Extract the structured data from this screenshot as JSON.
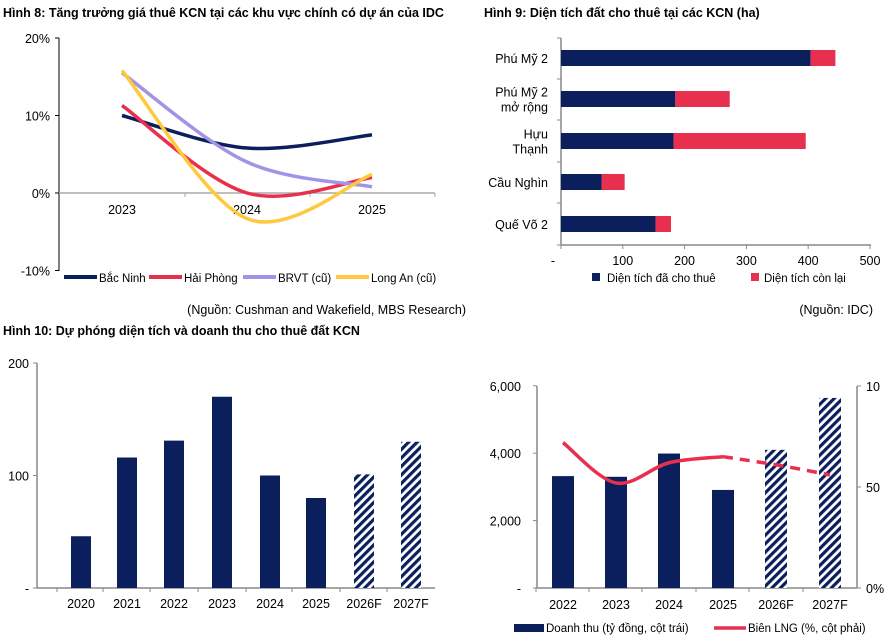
{
  "chart_data": [
    {
      "type": "line",
      "title": "Hình 8: Tăng trưởng giá thuê KCN tại các khu vực chính có dự án của IDC",
      "source": "(Nguồn: Cushman and Wakefield, MBS Research)",
      "categories": [
        "2023",
        "2024",
        "2025"
      ],
      "ylim": [
        -10,
        20
      ],
      "yticks": [
        "20%",
        "10%",
        "0%",
        "-10%"
      ],
      "legend": "bottom",
      "series": [
        {
          "name": "Bắc Ninh",
          "color": "#0b1f5c",
          "values": [
            10,
            5.8,
            7.5
          ]
        },
        {
          "name": "Hải Phòng",
          "color": "#e8304e",
          "values": [
            11.3,
            0,
            2
          ]
        },
        {
          "name": "BRVT (cũ)",
          "color": "#a393e6",
          "values": [
            15.5,
            4,
            0.8
          ]
        },
        {
          "name": "Long An (cũ)",
          "color": "#ffc83d",
          "values": [
            15.8,
            -3.3,
            2.4
          ]
        }
      ]
    },
    {
      "type": "bar",
      "orientation": "horizontal",
      "stacked": true,
      "title": "Hình 9: Diện tích đất cho thuê tại các KCN (ha)",
      "source": "(Nguồn: IDC)",
      "categories": [
        [
          "Phú Mỹ 2"
        ],
        [
          "Phú Mỹ 2",
          "mở rộng"
        ],
        [
          "Hựu",
          "Thạnh"
        ],
        [
          "Cầu Nghìn"
        ],
        [
          "Quế Võ 2"
        ]
      ],
      "xlim": [
        0,
        500
      ],
      "xticks": [
        "-",
        "100",
        "200",
        "300",
        "400",
        "500"
      ],
      "legend": "bottom",
      "series": [
        {
          "name": "Diện tích đã cho thuê",
          "color": "#0b1f5c",
          "values": [
            404,
            185,
            182,
            66,
            153
          ]
        },
        {
          "name": "Diện tích còn lại",
          "color": "#e8304e",
          "values": [
            40,
            88,
            214,
            37,
            25
          ]
        }
      ]
    },
    {
      "type": "bar",
      "title": "Hình 10: Dự phóng diện tích và doanh thu cho thuê đất KCN",
      "categories": [
        "2020",
        "2021",
        "2022",
        "2023",
        "2024",
        "2025",
        "2026F",
        "2027F"
      ],
      "values": [
        46,
        116,
        131,
        170,
        100,
        80,
        101,
        130
      ],
      "forecast": [
        "2026F",
        "2027F"
      ],
      "ylim": [
        0,
        200
      ],
      "yticks": [
        "200",
        "100",
        "-"
      ],
      "color": "#0b1f5c"
    },
    {
      "type": "bar",
      "categories": [
        "2022",
        "2023",
        "2024",
        "2025",
        "2026F",
        "2027F"
      ],
      "ylim": [
        0,
        6000
      ],
      "yticks": [
        "6,000",
        "4,000",
        "2,000",
        "-"
      ],
      "y2lim": [
        0,
        100
      ],
      "y2ticks": [
        "10",
        "50",
        "0%"
      ],
      "legend": "bottom",
      "series": [
        {
          "name": "Doanh thu (tỷ đồng, cột trái)",
          "type": "bar",
          "color": "#0b1f5c",
          "values": [
            3320,
            3300,
            3990,
            2910,
            4100,
            5640
          ]
        },
        {
          "name": "Biên LNG (%, cột phải)",
          "type": "line",
          "axis": "right",
          "color": "#e8304e",
          "values": [
            72,
            52,
            62,
            65,
            61,
            56
          ]
        }
      ]
    }
  ]
}
